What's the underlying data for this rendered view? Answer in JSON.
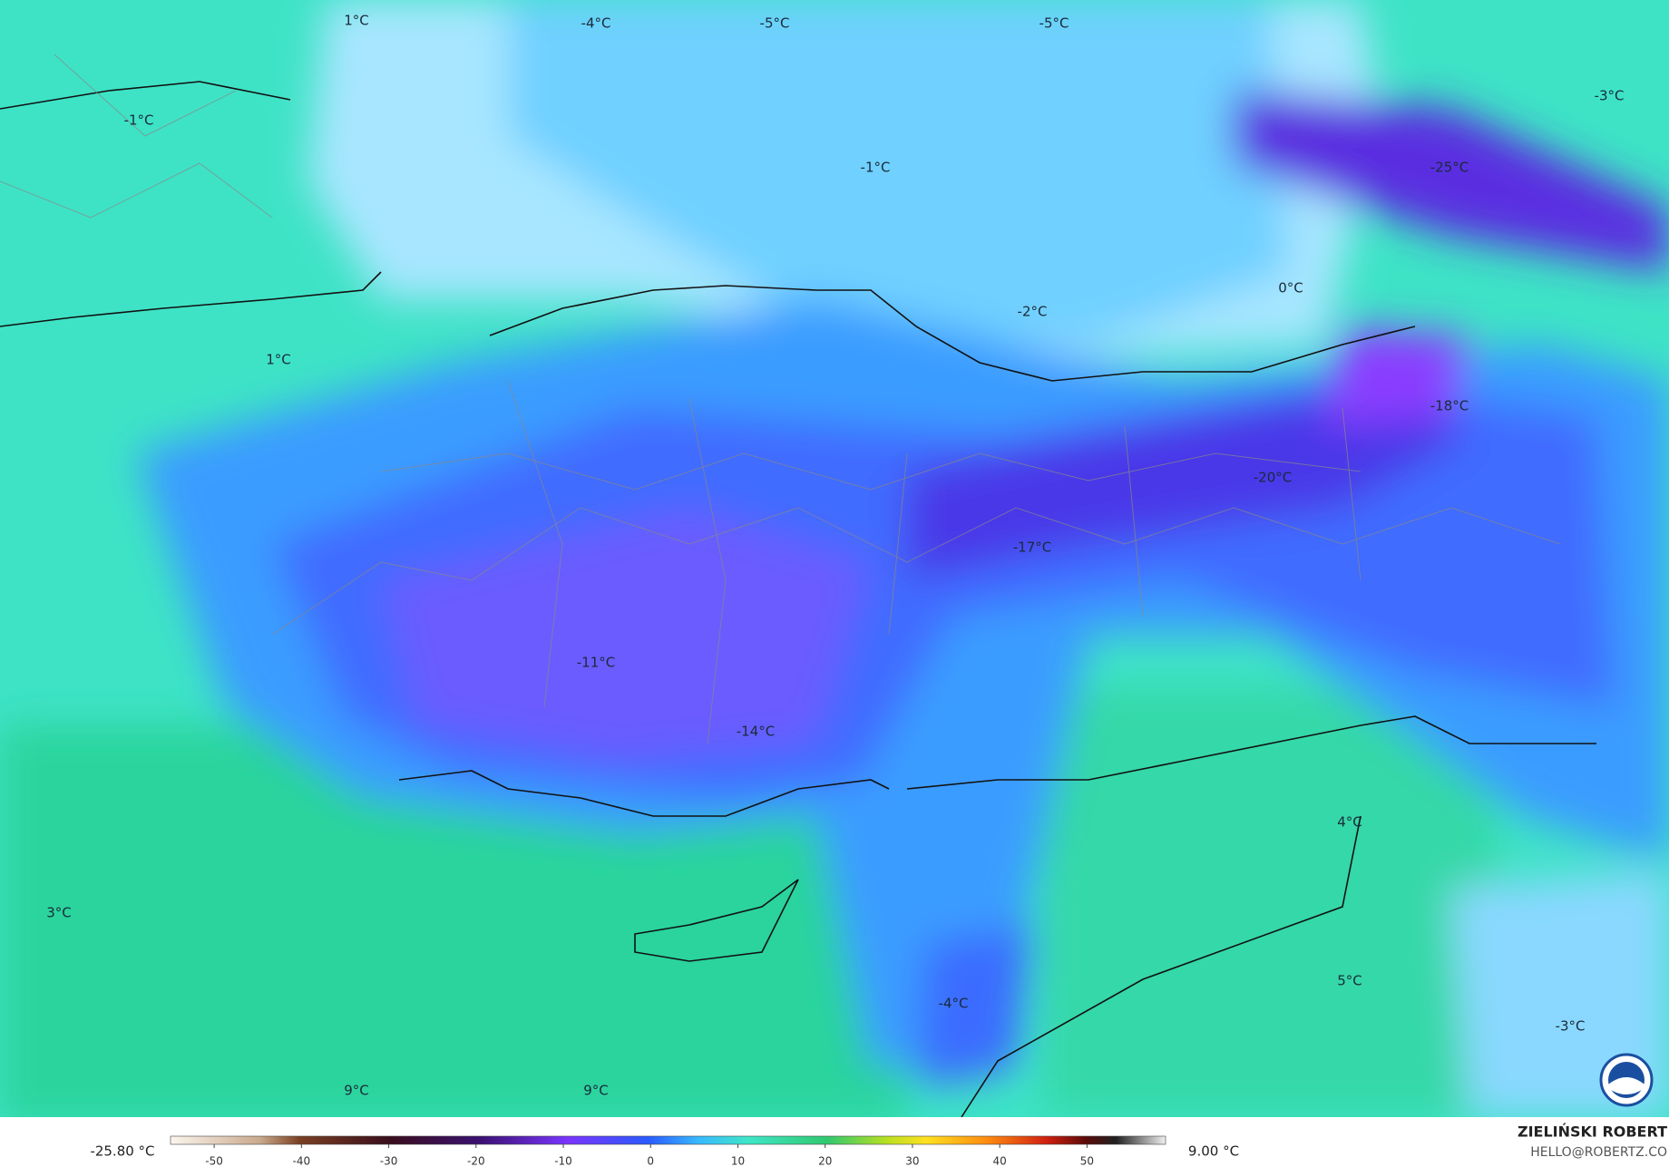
{
  "map": {
    "labels": [
      "1°C",
      "-4°C",
      "-5°C",
      "-5°C",
      "-3°C",
      "-1°C",
      "-1°C",
      "-25°C",
      "0°C",
      "-2°C",
      "1°C",
      "-18°C",
      "-20°C",
      "-17°C",
      "-11°C",
      "-14°C",
      "4°C",
      "3°C",
      "5°C",
      "-4°C",
      "-3°C",
      "9°C",
      "9°C"
    ]
  },
  "legend": {
    "min_label": "-25.80 °C",
    "max_label": "9.00 °C",
    "range": [
      -55,
      59
    ],
    "ticks": [
      -50,
      -40,
      -30,
      -20,
      -10,
      0,
      10,
      20,
      30,
      40,
      50
    ]
  },
  "credit": {
    "author": "ZIELIŃSKI ROBERT",
    "email": "HELLO@ROBERTZ.CO"
  }
}
